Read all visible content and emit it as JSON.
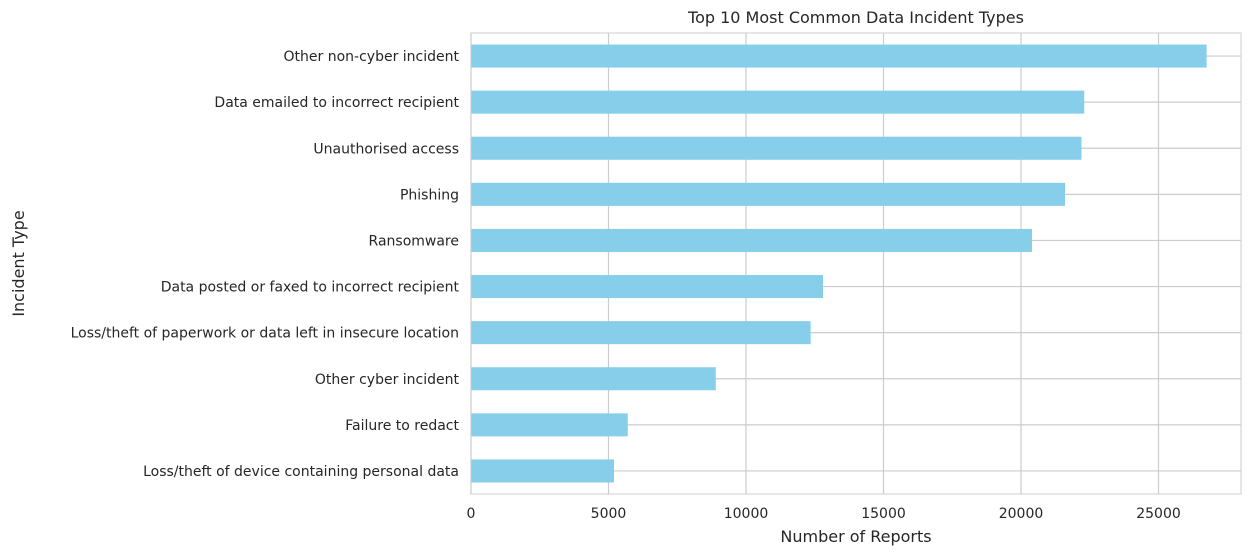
{
  "chart_data": {
    "type": "bar",
    "orientation": "horizontal",
    "title": "Top 10 Most Common Data Incident Types",
    "xlabel": "Number of Reports",
    "ylabel": "Incident Type",
    "categories": [
      "Other non-cyber incident",
      "Data emailed to incorrect recipient",
      "Unauthorised access",
      "Phishing",
      "Ransomware",
      "Data posted or faxed to incorrect recipient",
      "Loss/theft of paperwork or data left in insecure location",
      "Other cyber incident",
      "Failure to redact",
      "Loss/theft of device containing personal data"
    ],
    "values": [
      26750,
      22300,
      22200,
      21600,
      20400,
      12800,
      12350,
      8900,
      5700,
      5200
    ],
    "xlim": [
      0,
      28000
    ],
    "xticks": [
      0,
      5000,
      10000,
      15000,
      20000,
      25000
    ],
    "grid": true,
    "colors": {
      "bar": "#87ceeb",
      "grid": "#cccccc",
      "frame": "#cccccc",
      "text": "#262626"
    }
  }
}
